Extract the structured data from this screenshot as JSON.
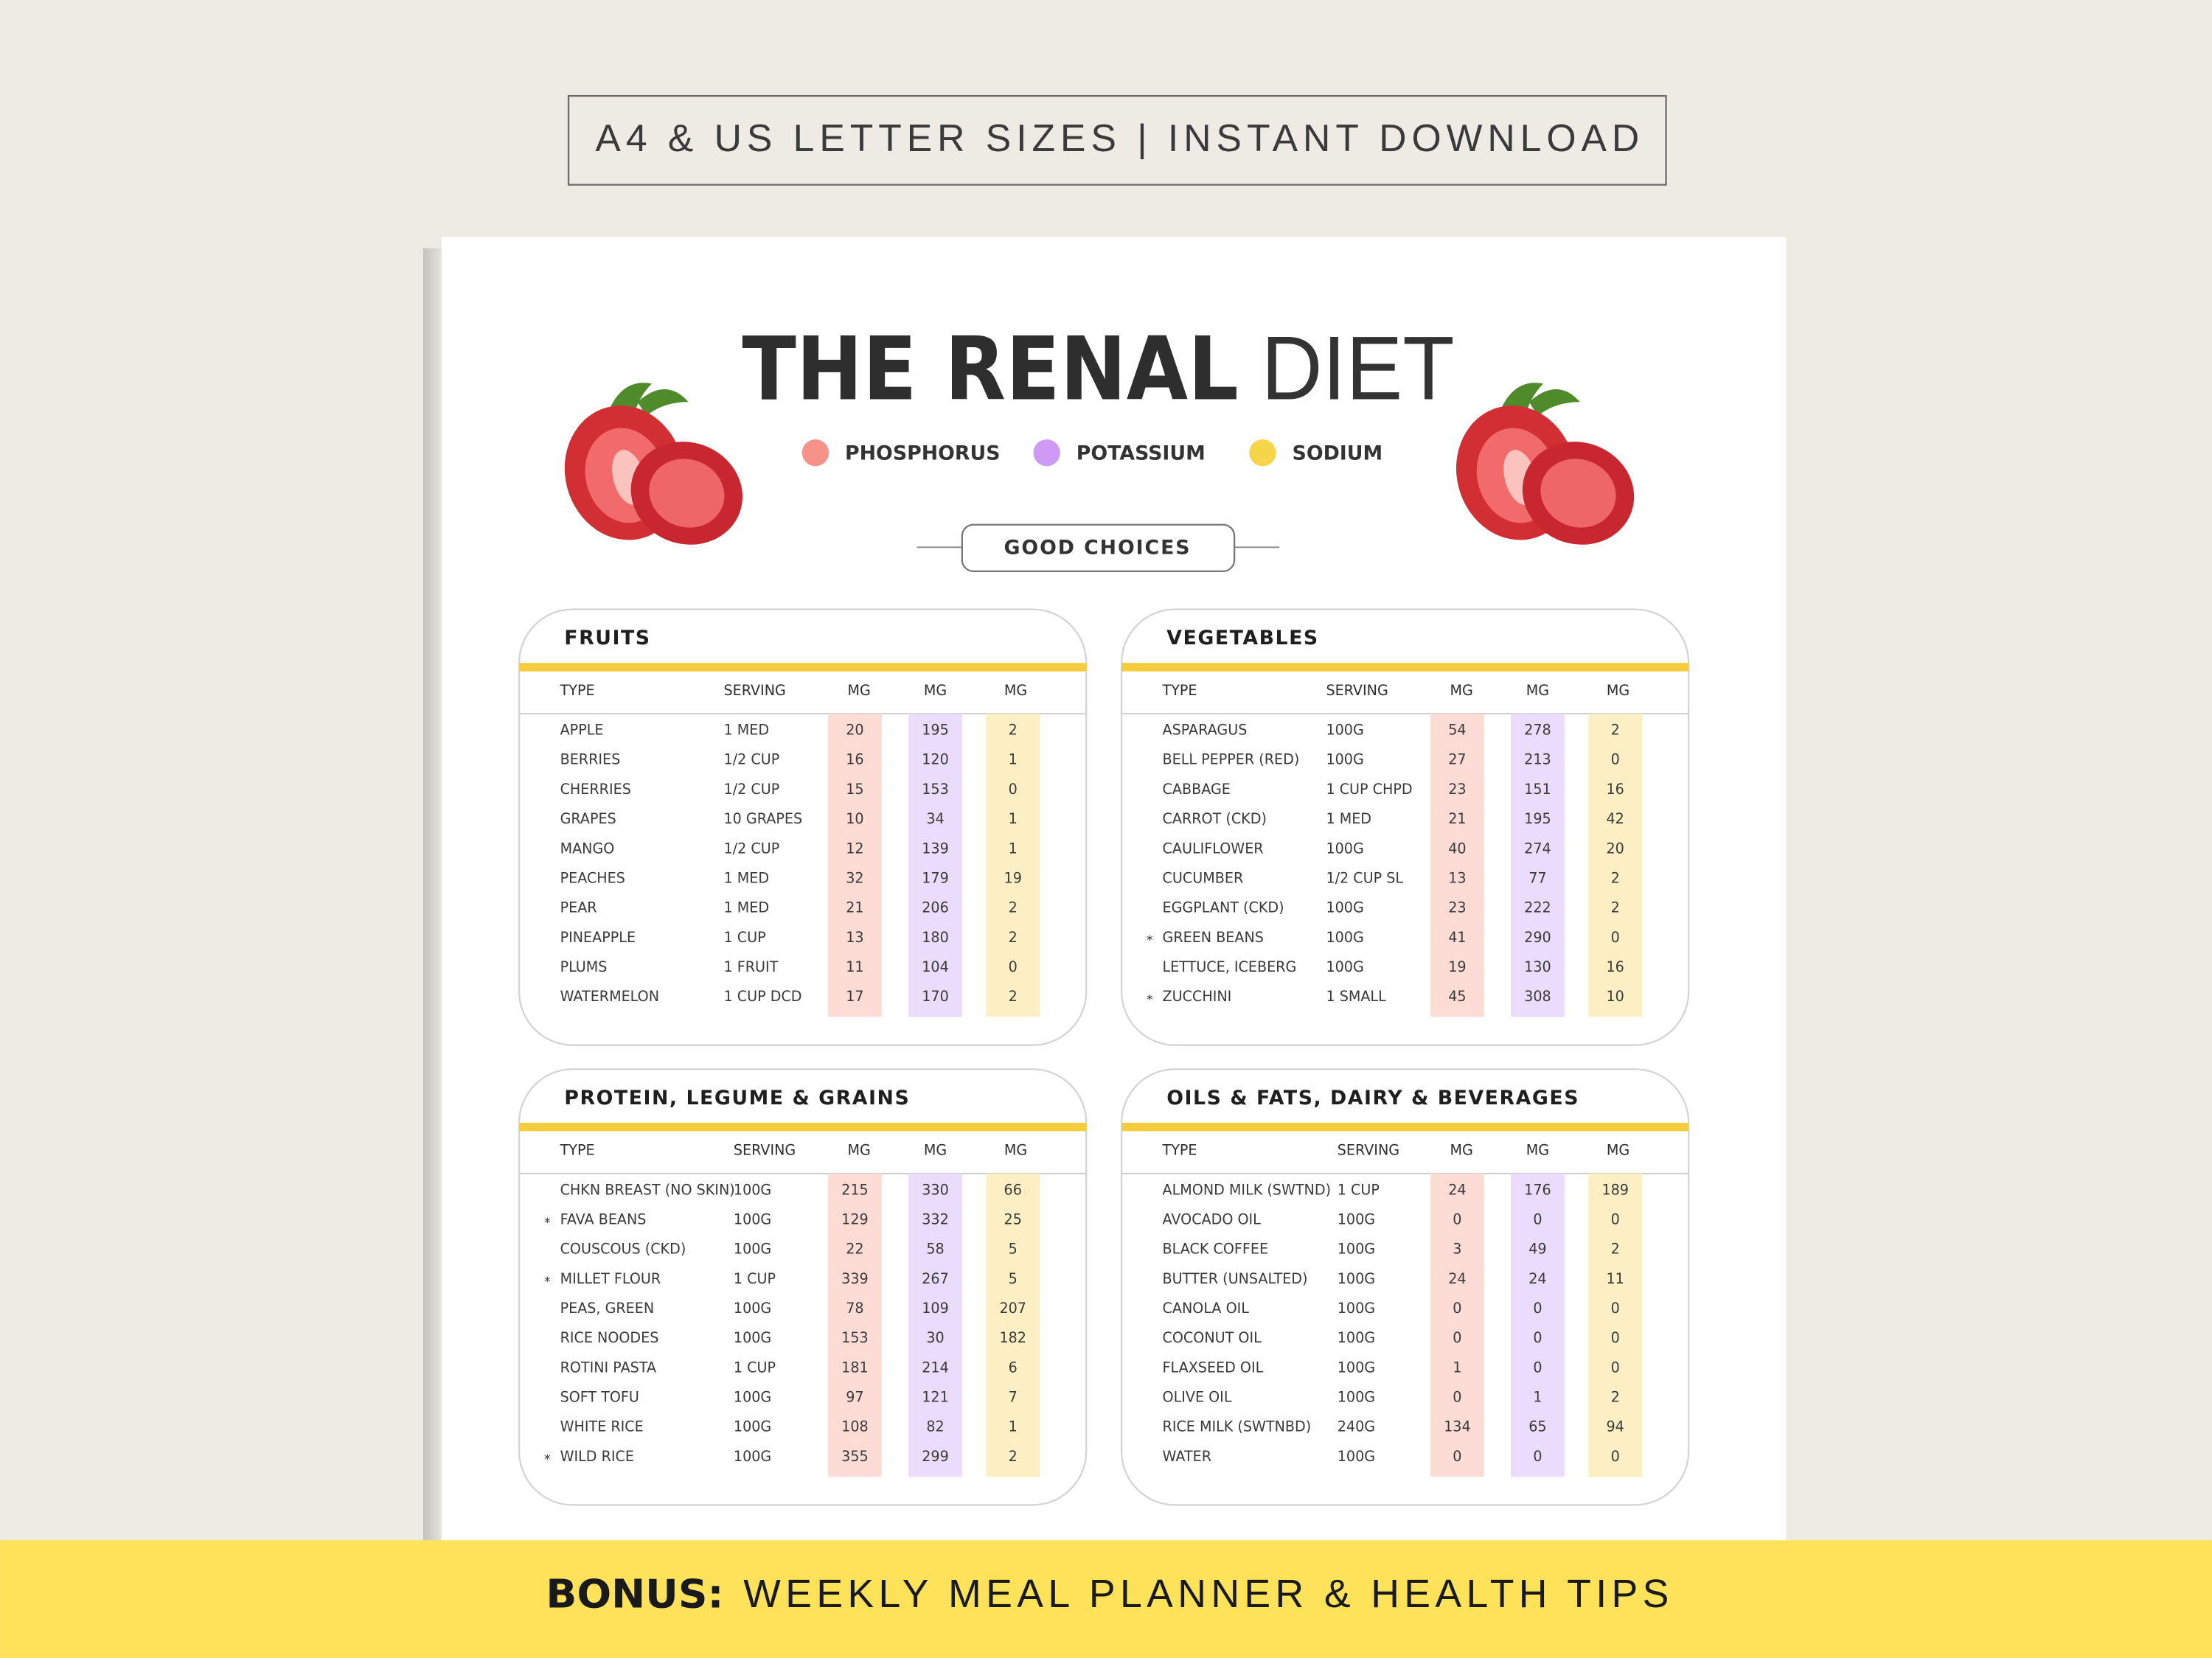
{
  "banner": "A4 & US LETTER SIZES | INSTANT DOWNLOAD",
  "title": {
    "bold": "THE RENAL",
    "light": "DIET"
  },
  "legend": [
    "PHOSPHORUS",
    "POTASSIUM",
    "SODIUM"
  ],
  "section_label": "GOOD CHOICES",
  "tables": [
    {
      "title": "FRUITS",
      "headers": [
        "TYPE",
        "SERVING",
        "MG",
        "MG",
        "MG"
      ],
      "rows": [
        {
          "cells": [
            "APPLE",
            "1 MED",
            20,
            195,
            2
          ]
        },
        {
          "cells": [
            "BERRIES",
            "1/2 CUP",
            16,
            120,
            1
          ]
        },
        {
          "cells": [
            "CHERRIES",
            "1/2 CUP",
            15,
            153,
            0
          ]
        },
        {
          "cells": [
            "GRAPES",
            "10 GRAPES",
            10,
            34,
            1
          ]
        },
        {
          "cells": [
            "MANGO",
            "1/2 CUP",
            12,
            139,
            1
          ]
        },
        {
          "cells": [
            "PEACHES",
            "1 MED",
            32,
            179,
            19
          ]
        },
        {
          "cells": [
            "PEAR",
            "1 MED",
            21,
            206,
            2
          ]
        },
        {
          "cells": [
            "PINEAPPLE",
            "1 CUP",
            13,
            180,
            2
          ]
        },
        {
          "cells": [
            "PLUMS",
            "1 FRUIT",
            11,
            104,
            0
          ]
        },
        {
          "cells": [
            "WATERMELON",
            "1 CUP DCD",
            17,
            170,
            2
          ]
        }
      ]
    },
    {
      "title": "VEGETABLES",
      "headers": [
        "TYPE",
        "SERVING",
        "MG",
        "MG",
        "MG"
      ],
      "rows": [
        {
          "cells": [
            "ASPARAGUS",
            "100G",
            54,
            278,
            2
          ]
        },
        {
          "cells": [
            "BELL PEPPER (RED)",
            "100G",
            27,
            213,
            0
          ]
        },
        {
          "cells": [
            "CABBAGE",
            "1 CUP CHPD",
            23,
            151,
            16
          ]
        },
        {
          "cells": [
            "CARROT (CKD)",
            "1 MED",
            21,
            195,
            42
          ]
        },
        {
          "cells": [
            "CAULIFLOWER",
            "100G",
            40,
            274,
            20
          ]
        },
        {
          "cells": [
            "CUCUMBER",
            "1/2 CUP SL",
            13,
            77,
            2
          ]
        },
        {
          "cells": [
            "EGGPLANT (CKD)",
            "100G",
            23,
            222,
            2
          ]
        },
        {
          "star": "*",
          "cells": [
            "GREEN BEANS",
            "100G",
            41,
            290,
            0
          ]
        },
        {
          "cells": [
            "LETTUCE, ICEBERG",
            "100G",
            19,
            130,
            16
          ]
        },
        {
          "star": "*",
          "cells": [
            "ZUCCHINI",
            "1 SMALL",
            45,
            308,
            10
          ]
        }
      ]
    },
    {
      "title": "PROTEIN, LEGUME & GRAINS",
      "headers": [
        "TYPE",
        "SERVING",
        "MG",
        "MG",
        "MG"
      ],
      "rows": [
        {
          "cells": [
            "CHKN BREAST (NO SKIN)",
            "100G",
            215,
            330,
            66
          ]
        },
        {
          "star": "*",
          "cells": [
            "FAVA BEANS",
            "100G",
            129,
            332,
            25
          ]
        },
        {
          "cells": [
            "COUSCOUS (CKD)",
            "100G",
            22,
            58,
            5
          ]
        },
        {
          "star": "*",
          "cells": [
            "MILLET FLOUR",
            "1 CUP",
            339,
            267,
            5
          ]
        },
        {
          "cells": [
            "PEAS, GREEN",
            "100G",
            78,
            109,
            207
          ]
        },
        {
          "cells": [
            "RICE NOODES",
            "100G",
            153,
            30,
            182
          ]
        },
        {
          "cells": [
            "ROTINI PASTA",
            "1 CUP",
            181,
            214,
            6
          ]
        },
        {
          "cells": [
            "SOFT TOFU",
            "100G",
            97,
            121,
            7
          ]
        },
        {
          "cells": [
            "WHITE RICE",
            "100G",
            108,
            82,
            1
          ]
        },
        {
          "star": "*",
          "cells": [
            "WILD RICE",
            "100G",
            355,
            299,
            2
          ]
        }
      ]
    },
    {
      "title": "OILS & FATS, DAIRY & BEVERAGES",
      "headers": [
        "TYPE",
        "SERVING",
        "MG",
        "MG",
        "MG"
      ],
      "rows": [
        {
          "cells": [
            "ALMOND MILK (SWTND)",
            "1 CUP",
            24,
            176,
            189
          ]
        },
        {
          "cells": [
            "AVOCADO OIL",
            "100G",
            0,
            0,
            0
          ]
        },
        {
          "cells": [
            "BLACK COFFEE",
            "100G",
            3,
            49,
            2
          ]
        },
        {
          "cells": [
            "BUTTER (UNSALTED)",
            "100G",
            24,
            24,
            11
          ]
        },
        {
          "cells": [
            "CANOLA OIL",
            "100G",
            0,
            0,
            0
          ]
        },
        {
          "cells": [
            "COCONUT OIL",
            "100G",
            0,
            0,
            0
          ]
        },
        {
          "cells": [
            "FLAXSEED OIL",
            "100G",
            1,
            0,
            0
          ]
        },
        {
          "cells": [
            "OLIVE OIL",
            "100G",
            0,
            1,
            2
          ]
        },
        {
          "cells": [
            "RICE MILK (SWTNBD)",
            "240G",
            134,
            65,
            94
          ]
        },
        {
          "cells": [
            "WATER",
            "100G",
            0,
            0,
            0
          ]
        }
      ]
    }
  ],
  "footer": {
    "bold": "BONUS:",
    "text": "WEEKLY MEAL PLANNER & HEALTH TIPS"
  }
}
